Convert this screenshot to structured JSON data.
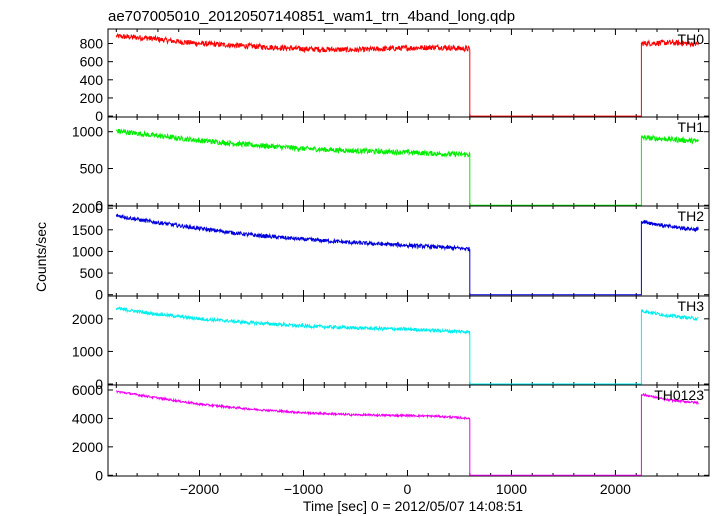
{
  "chart_data": {
    "type": "line",
    "title": "ae707005010_20120507140851_wam1_trn_4band_long.qdp",
    "xlabel": "Time [sec] 0 = 2012/05/07 14:08:51",
    "ylabel": "Counts/sec",
    "xlim": [
      -2880,
      2900
    ],
    "x_ticks": [
      -2000,
      -1000,
      0,
      1000,
      2000
    ],
    "x_tick_labels": [
      "−2000",
      "−1000",
      "0",
      "1000",
      "2000"
    ],
    "gap": [
      600,
      2250
    ],
    "panels": [
      {
        "label": "TH0",
        "color": "#ff0000",
        "ylim": [
          -10,
          960
        ],
        "y_ticks": [
          0,
          200,
          400,
          600,
          800
        ],
        "x": [
          -2800,
          -2500,
          -2200,
          -2000,
          -1500,
          -1000,
          -500,
          0,
          300,
          600,
          2250,
          2500,
          2800
        ],
        "y": [
          880,
          860,
          820,
          800,
          770,
          740,
          730,
          750,
          760,
          740,
          800,
          810,
          795
        ],
        "noise": 30
      },
      {
        "label": "TH1",
        "color": "#00ee00",
        "ylim": [
          -10,
          1200
        ],
        "y_ticks": [
          0,
          500,
          1000
        ],
        "x": [
          -2800,
          -2500,
          -2000,
          -1500,
          -1000,
          -500,
          0,
          300,
          600,
          2250,
          2500,
          2800
        ],
        "y": [
          1010,
          960,
          880,
          820,
          770,
          740,
          720,
          700,
          690,
          920,
          900,
          870
        ],
        "noise": 35
      },
      {
        "label": "TH2",
        "color": "#0000dd",
        "ylim": [
          -30,
          2050
        ],
        "y_ticks": [
          0,
          500,
          1000,
          1500,
          2000
        ],
        "x": [
          -2800,
          -2500,
          -2000,
          -1500,
          -1000,
          -500,
          0,
          300,
          600,
          2250,
          2500,
          2800
        ],
        "y": [
          1830,
          1700,
          1530,
          1380,
          1280,
          1200,
          1140,
          1100,
          1060,
          1700,
          1580,
          1500
        ],
        "noise": 45
      },
      {
        "label": "TH3",
        "color": "#00eeee",
        "ylim": [
          -30,
          2700
        ],
        "y_ticks": [
          0,
          1000,
          2000
        ],
        "x": [
          -2800,
          -2500,
          -2000,
          -1500,
          -1000,
          -500,
          0,
          300,
          600,
          2250,
          2500,
          2800
        ],
        "y": [
          2320,
          2180,
          2000,
          1880,
          1780,
          1720,
          1680,
          1640,
          1600,
          2250,
          2100,
          2000
        ],
        "noise": 50
      },
      {
        "label": "TH0123",
        "color": "#ee00ee",
        "ylim": [
          -50,
          6350
        ],
        "y_ticks": [
          0,
          2000,
          4000,
          6000
        ],
        "x": [
          -2800,
          -2500,
          -2000,
          -1500,
          -1000,
          -500,
          0,
          300,
          600,
          2250,
          2500,
          2800
        ],
        "y": [
          5900,
          5550,
          5000,
          4650,
          4400,
          4250,
          4200,
          4150,
          4000,
          5700,
          5300,
          5100
        ],
        "noise": 70
      }
    ]
  }
}
